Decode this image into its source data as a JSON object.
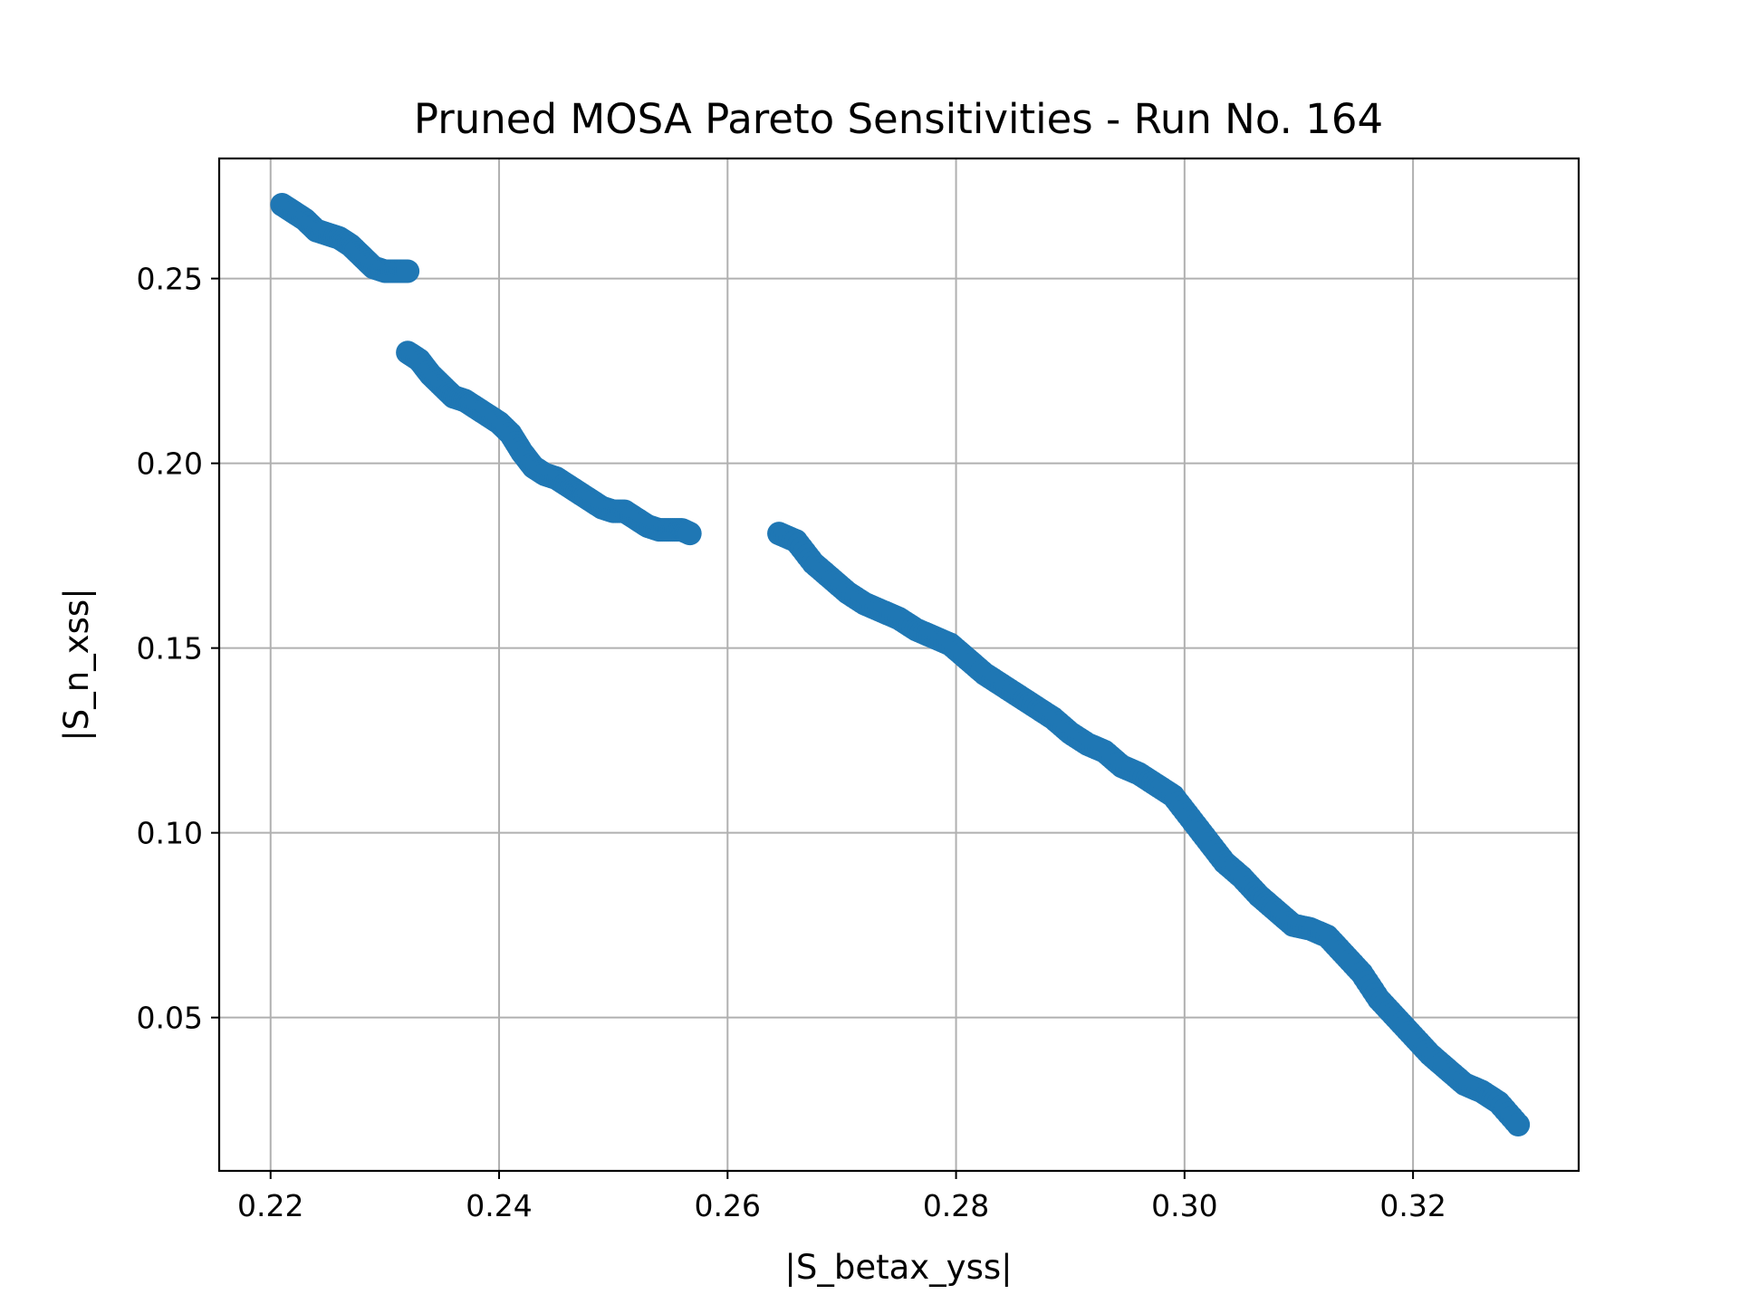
{
  "chart_data": {
    "type": "scatter",
    "title": "Pruned MOSA Pareto Sensitivities - Run No. 164",
    "xlabel": "|S_betax_yss|",
    "ylabel": "|S_n_xss|",
    "xlim": [
      0.2155,
      0.3345
    ],
    "ylim": [
      0.0085,
      0.2825
    ],
    "xticks": [
      0.22,
      0.24,
      0.26,
      0.28,
      0.3,
      0.32
    ],
    "xtick_labels": [
      "0.22",
      "0.24",
      "0.26",
      "0.28",
      "0.30",
      "0.32"
    ],
    "yticks": [
      0.05,
      0.1,
      0.15,
      0.2,
      0.25
    ],
    "ytick_labels": [
      "0.05",
      "0.10",
      "0.15",
      "0.20",
      "0.25"
    ],
    "grid": true,
    "color": "#1f77b4",
    "series": [
      {
        "x": [
          0.221,
          0.222,
          0.223,
          0.224,
          0.225,
          0.226,
          0.227,
          0.228,
          0.229,
          0.23,
          0.231,
          0.232,
          0.232,
          0.233,
          0.234,
          0.235,
          0.236,
          0.237,
          0.238,
          0.239,
          0.24,
          0.241,
          0.242,
          0.243,
          0.244,
          0.245,
          0.246,
          0.247,
          0.248,
          0.249,
          0.25,
          0.251,
          0.252,
          0.253,
          0.254,
          0.255,
          0.256,
          0.2567,
          0.2645,
          0.266,
          0.2675,
          0.269,
          0.2705,
          0.272,
          0.2735,
          0.275,
          0.2765,
          0.278,
          0.2795,
          0.281,
          0.2825,
          0.284,
          0.2855,
          0.287,
          0.2885,
          0.29,
          0.2915,
          0.293,
          0.2945,
          0.296,
          0.2975,
          0.299,
          0.3005,
          0.302,
          0.3035,
          0.305,
          0.3065,
          0.308,
          0.3095,
          0.311,
          0.3125,
          0.314,
          0.3155,
          0.317,
          0.3185,
          0.32,
          0.3215,
          0.323,
          0.3245,
          0.326,
          0.3275,
          0.3292
        ],
        "y": [
          0.27,
          0.268,
          0.266,
          0.263,
          0.262,
          0.261,
          0.259,
          0.256,
          0.253,
          0.252,
          0.252,
          0.252,
          0.23,
          0.228,
          0.224,
          0.221,
          0.218,
          0.217,
          0.215,
          0.213,
          0.211,
          0.208,
          0.203,
          0.199,
          0.197,
          0.196,
          0.194,
          0.192,
          0.19,
          0.188,
          0.187,
          0.187,
          0.185,
          0.183,
          0.182,
          0.182,
          0.182,
          0.181,
          0.181,
          0.179,
          0.173,
          0.169,
          0.165,
          0.162,
          0.16,
          0.158,
          0.155,
          0.153,
          0.151,
          0.147,
          0.143,
          0.14,
          0.137,
          0.134,
          0.131,
          0.127,
          0.124,
          0.122,
          0.118,
          0.116,
          0.113,
          0.11,
          0.104,
          0.098,
          0.092,
          0.088,
          0.083,
          0.079,
          0.075,
          0.074,
          0.072,
          0.067,
          0.062,
          0.055,
          0.05,
          0.045,
          0.04,
          0.036,
          0.032,
          0.03,
          0.027,
          0.021
        ]
      }
    ]
  }
}
